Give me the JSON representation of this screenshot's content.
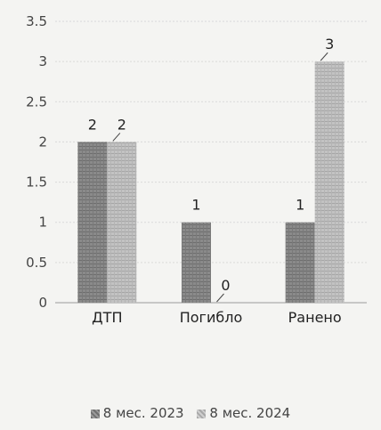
{
  "chart_data": {
    "type": "bar",
    "categories": [
      "ДТП",
      "Погибло",
      "Ранено"
    ],
    "series": [
      {
        "name": "8 мес. 2023",
        "values": [
          2,
          1,
          1
        ],
        "color": "#8a8a8a"
      },
      {
        "name": "8 мес. 2024",
        "values": [
          2,
          0,
          3
        ],
        "color": "#bdbdbd"
      }
    ],
    "ylim": [
      0,
      3.5
    ],
    "yticks": [
      "0",
      "0.5",
      "1",
      "1.5",
      "2",
      "2.5",
      "3",
      "3.5"
    ],
    "grid": true,
    "legend_position": "bottom"
  }
}
